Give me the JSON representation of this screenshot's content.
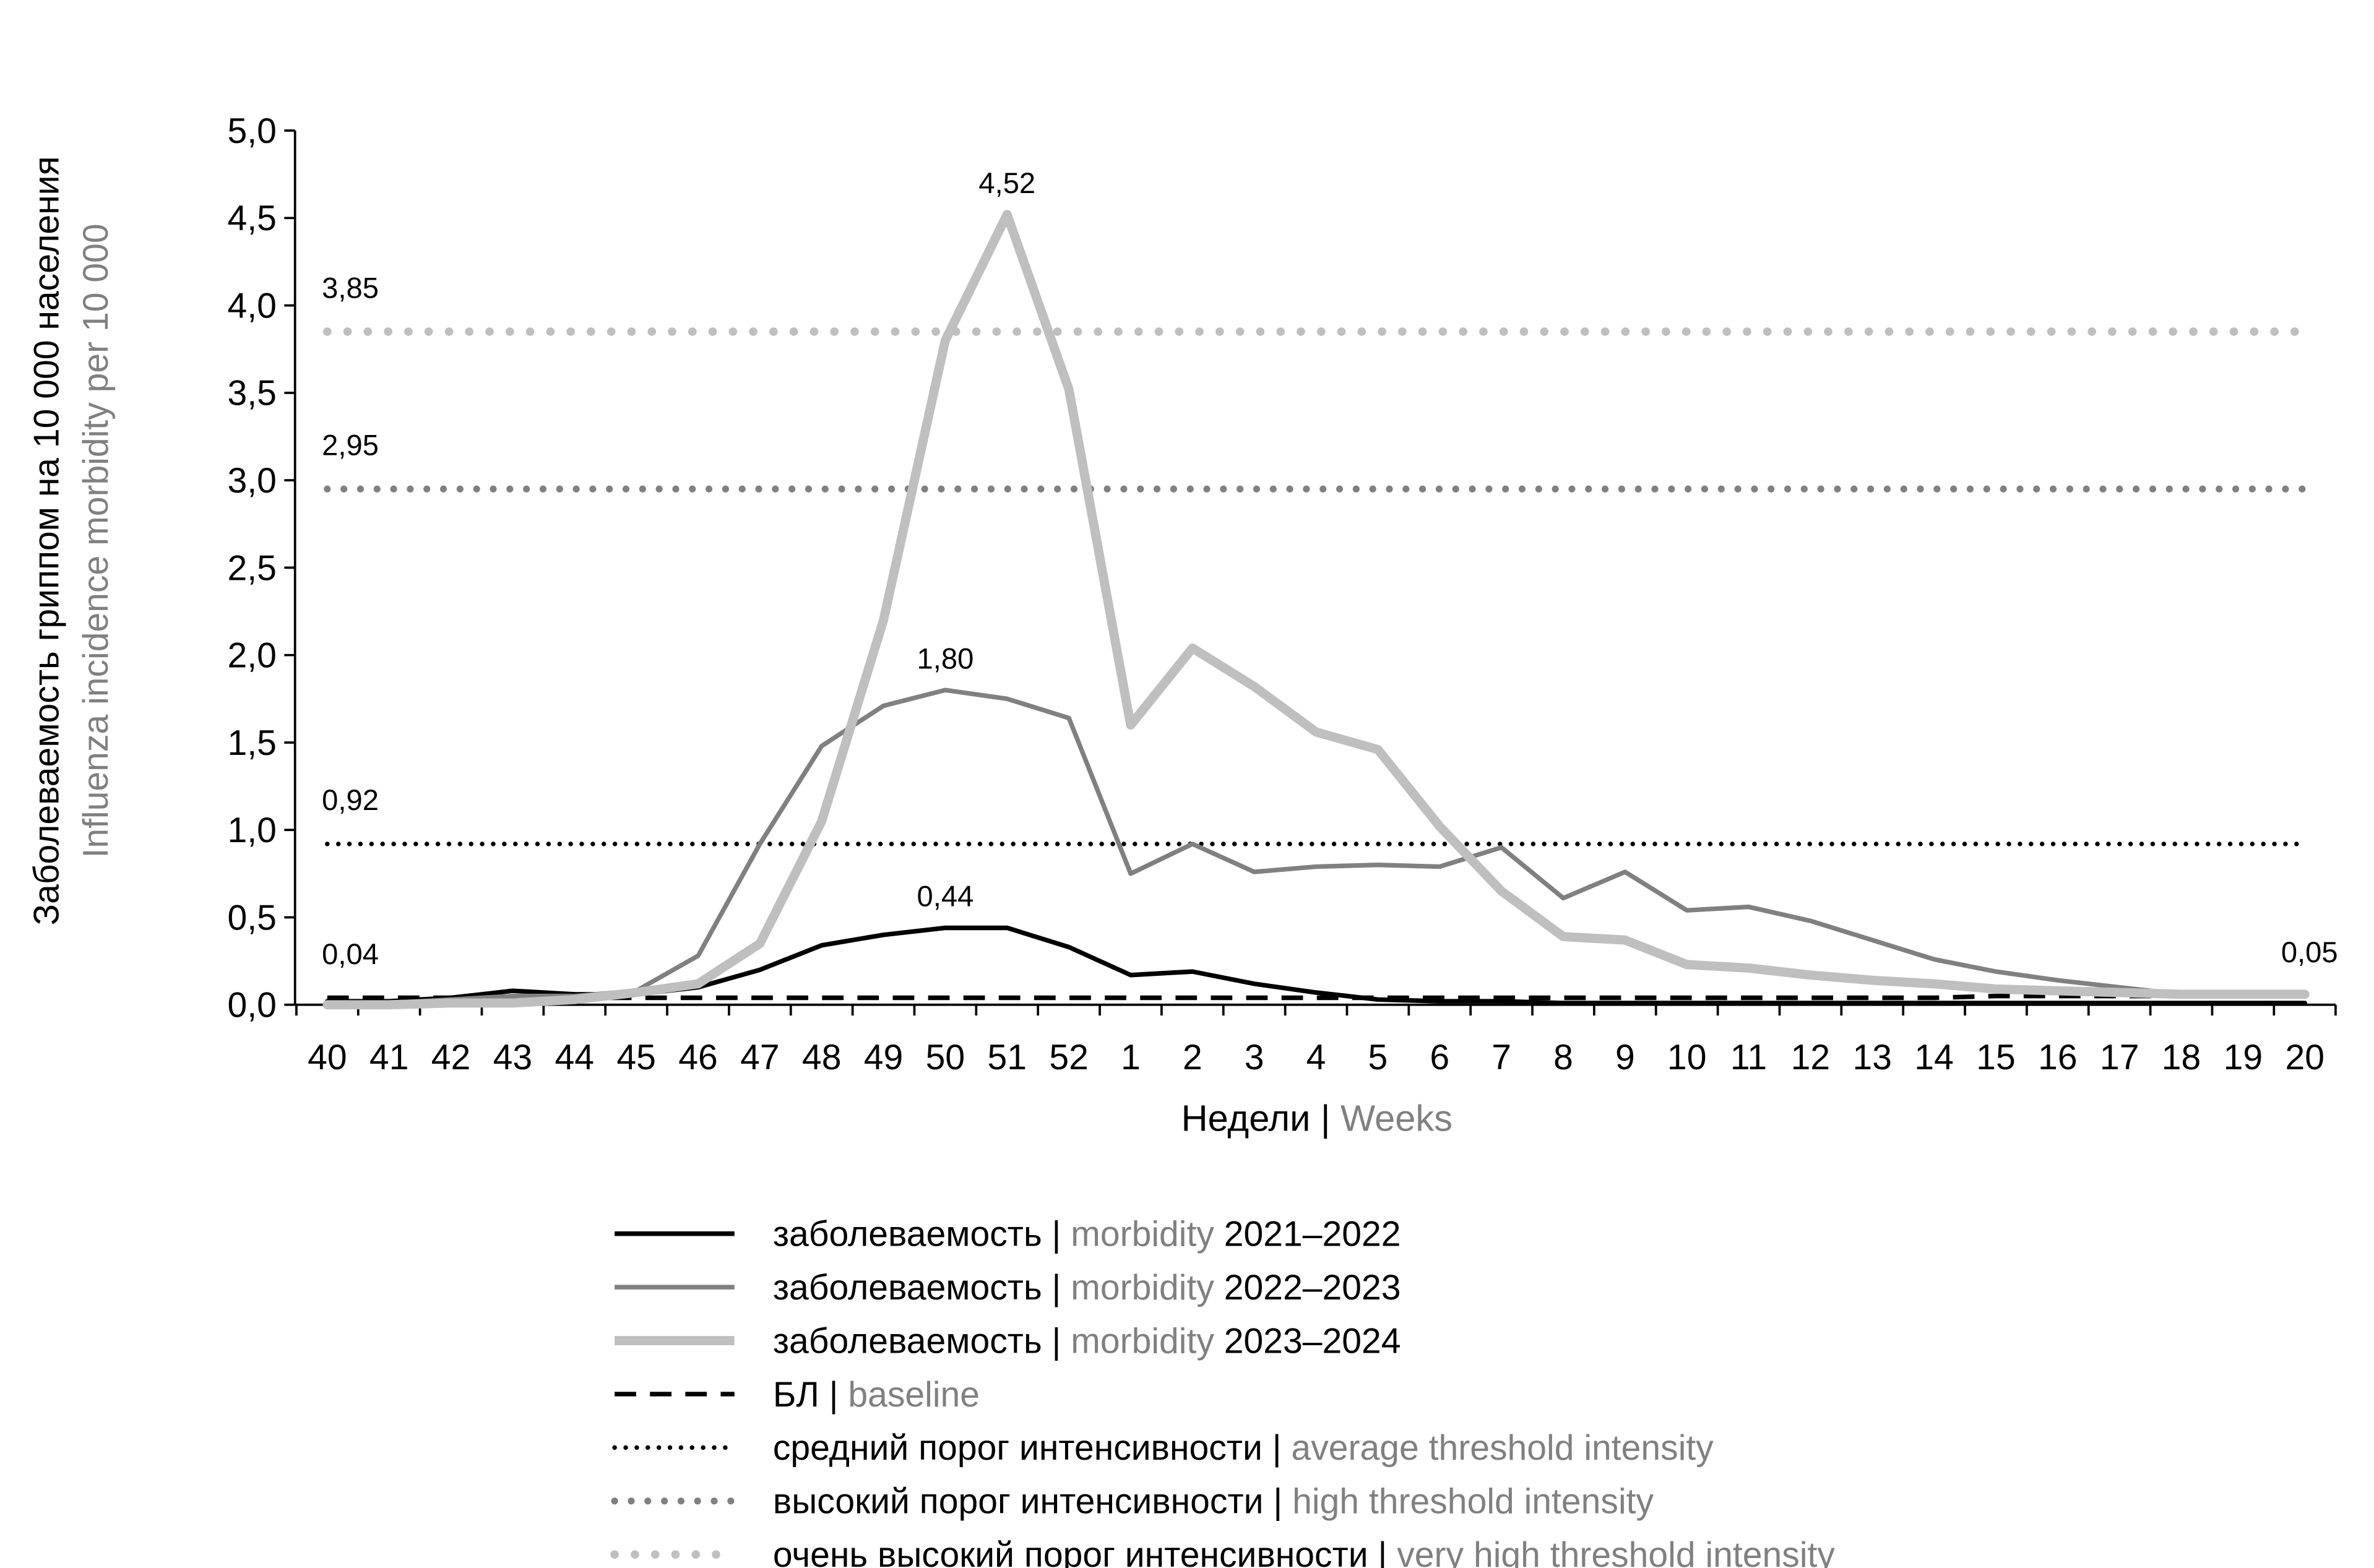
{
  "chart_data": {
    "type": "line",
    "y_title": "Заболеваемость гриппом на 10 000 населения",
    "y_title_en": "Influenza incidence morbidity per 10 000",
    "x_title": "Недели |",
    "x_title_en": "Weeks",
    "categories": [
      "40",
      "41",
      "42",
      "43",
      "44",
      "45",
      "46",
      "47",
      "48",
      "49",
      "50",
      "51",
      "52",
      "1",
      "2",
      "3",
      "4",
      "5",
      "6",
      "7",
      "8",
      "9",
      "10",
      "11",
      "12",
      "13",
      "14",
      "15",
      "16",
      "17",
      "18",
      "19",
      "20"
    ],
    "ylim": [
      0,
      5
    ],
    "yticks": [
      {
        "value": 0,
        "label": "0,0"
      },
      {
        "value": 0.5,
        "label": "0,5"
      },
      {
        "value": 1,
        "label": "1,0"
      },
      {
        "value": 1.5,
        "label": "1,5"
      },
      {
        "value": 2,
        "label": "2,0"
      },
      {
        "value": 2.5,
        "label": "2,5"
      },
      {
        "value": 3,
        "label": "3,0"
      },
      {
        "value": 3.5,
        "label": "3,5"
      },
      {
        "value": 4,
        "label": "4,0"
      },
      {
        "value": 4.5,
        "label": "4,5"
      },
      {
        "value": 5,
        "label": "5,0"
      }
    ],
    "series": [
      {
        "name": "заболеваемость |",
        "name_en": "morbidity",
        "season": "2021–2022",
        "color": "#000000",
        "width": 3,
        "style": "solid",
        "values": [
          0.02,
          0.02,
          0.04,
          0.08,
          0.06,
          0.06,
          0.1,
          0.2,
          0.34,
          0.4,
          0.44,
          0.44,
          0.33,
          0.17,
          0.19,
          0.12,
          0.07,
          0.03,
          0.02,
          0.02,
          0.01,
          0.01,
          0.01,
          0.01,
          0.01,
          0.01,
          0.01,
          0.01,
          0.01,
          0.01,
          0.01,
          0.01,
          0.01
        ],
        "value_labels": [
          null,
          null,
          null,
          null,
          null,
          null,
          null,
          null,
          null,
          null,
          "0,44",
          null,
          null,
          null,
          null,
          null,
          null,
          null,
          null,
          null,
          null,
          null,
          null,
          null,
          null,
          null,
          null,
          null,
          null,
          null,
          null,
          null,
          null
        ]
      },
      {
        "name": "заболеваемость |",
        "name_en": "morbidity",
        "season": "2022–2023",
        "color": "#808080",
        "width": 3,
        "style": "solid",
        "values": [
          0.01,
          0.01,
          0.03,
          0.05,
          0.05,
          0.08,
          0.28,
          0.92,
          1.48,
          1.71,
          1.8,
          1.75,
          1.64,
          0.75,
          0.92,
          0.76,
          0.79,
          0.8,
          0.79,
          0.9,
          0.61,
          0.76,
          0.54,
          0.56,
          0.48,
          0.37,
          0.26,
          0.19,
          0.14,
          0.1,
          0.06,
          0.06,
          0.06
        ],
        "value_labels": [
          null,
          null,
          null,
          null,
          null,
          null,
          null,
          null,
          null,
          null,
          "1,80",
          null,
          null,
          null,
          null,
          null,
          null,
          null,
          null,
          null,
          null,
          null,
          null,
          null,
          null,
          null,
          null,
          null,
          null,
          null,
          null,
          null,
          null
        ]
      },
      {
        "name": "заболеваемость |",
        "name_en": "morbidity",
        "season": "2023–2024",
        "color": "#bfbfbf",
        "width": 6,
        "style": "solid",
        "values": [
          0,
          0,
          0.01,
          0.01,
          0.03,
          0.07,
          0.12,
          0.35,
          1.05,
          2.2,
          3.8,
          4.52,
          3.52,
          1.6,
          2.04,
          1.82,
          1.56,
          1.46,
          1.02,
          0.65,
          0.39,
          0.37,
          0.23,
          0.21,
          0.17,
          0.14,
          0.12,
          0.09,
          0.08,
          0.07,
          0.06,
          0.06,
          0.06
        ],
        "value_labels": [
          null,
          null,
          null,
          null,
          null,
          null,
          null,
          null,
          null,
          null,
          null,
          "4,52",
          null,
          null,
          null,
          null,
          null,
          null,
          null,
          null,
          null,
          null,
          null,
          null,
          null,
          null,
          null,
          null,
          null,
          null,
          null,
          null,
          null
        ]
      },
      {
        "name": "БЛ |",
        "name_en": "baseline",
        "color": "#000000",
        "width": 3,
        "style": "dashed",
        "values": [
          0.04,
          0.04,
          0.04,
          0.04,
          0.04,
          0.04,
          0.04,
          0.04,
          0.04,
          0.04,
          0.04,
          0.04,
          0.04,
          0.04,
          0.04,
          0.04,
          0.04,
          0.04,
          0.04,
          0.04,
          0.04,
          0.04,
          0.04,
          0.04,
          0.04,
          0.04,
          0.04,
          0.05,
          0.05,
          0.05,
          0.05,
          0.05,
          0.05
        ],
        "value_labels": [
          "0,04",
          null,
          null,
          null,
          null,
          null,
          null,
          null,
          null,
          null,
          null,
          null,
          null,
          null,
          null,
          null,
          null,
          null,
          null,
          null,
          null,
          null,
          null,
          null,
          null,
          null,
          null,
          null,
          null,
          null,
          null,
          null,
          "0,05"
        ]
      },
      {
        "name": "средний порог интенсивности |",
        "name_en": "average threshold intensity",
        "color": "#000000",
        "width": 3,
        "style": "dotted",
        "values": [
          0.92,
          0.92,
          0.92,
          0.92,
          0.92,
          0.92,
          0.92,
          0.92,
          0.92,
          0.92,
          0.92,
          0.92,
          0.92,
          0.92,
          0.92,
          0.92,
          0.92,
          0.92,
          0.92,
          0.92,
          0.92,
          0.92,
          0.92,
          0.92,
          0.92,
          0.92,
          0.92,
          0.92,
          0.92,
          0.92,
          0.92,
          0.92,
          0.92
        ],
        "value_labels": [
          "0,92",
          null,
          null,
          null,
          null,
          null,
          null,
          null,
          null,
          null,
          null,
          null,
          null,
          null,
          null,
          null,
          null,
          null,
          null,
          null,
          null,
          null,
          null,
          null,
          null,
          null,
          null,
          null,
          null,
          null,
          null,
          null,
          null
        ]
      },
      {
        "name": "высокий порог интенсивности |",
        "name_en": "high threshold intensity",
        "color": "#808080",
        "width": 4.5,
        "style": "dotted",
        "values": [
          2.95,
          2.95,
          2.95,
          2.95,
          2.95,
          2.95,
          2.95,
          2.95,
          2.95,
          2.95,
          2.95,
          2.95,
          2.95,
          2.95,
          2.95,
          2.95,
          2.95,
          2.95,
          2.95,
          2.95,
          2.95,
          2.95,
          2.95,
          2.95,
          2.95,
          2.95,
          2.95,
          2.95,
          2.95,
          2.95,
          2.95,
          2.95,
          2.95
        ],
        "value_labels": [
          "2,95",
          null,
          null,
          null,
          null,
          null,
          null,
          null,
          null,
          null,
          null,
          null,
          null,
          null,
          null,
          null,
          null,
          null,
          null,
          null,
          null,
          null,
          null,
          null,
          null,
          null,
          null,
          null,
          null,
          null,
          null,
          null,
          null
        ]
      },
      {
        "name": "очень высокий порог интенсивности |",
        "name_en": "very high threshold intensity",
        "color": "#bfbfbf",
        "width": 5.5,
        "style": "dotted",
        "values": [
          3.85,
          3.85,
          3.85,
          3.85,
          3.85,
          3.85,
          3.85,
          3.85,
          3.85,
          3.85,
          3.85,
          3.85,
          3.85,
          3.85,
          3.85,
          3.85,
          3.85,
          3.85,
          3.85,
          3.85,
          3.85,
          3.85,
          3.85,
          3.85,
          3.85,
          3.85,
          3.85,
          3.85,
          3.85,
          3.85,
          3.85,
          3.85,
          3.85
        ],
        "value_labels": [
          "3,85",
          null,
          null,
          null,
          null,
          null,
          null,
          null,
          null,
          null,
          null,
          null,
          null,
          null,
          null,
          null,
          null,
          null,
          null,
          null,
          null,
          null,
          null,
          null,
          null,
          null,
          null,
          null,
          null,
          null,
          null,
          null,
          null
        ]
      }
    ]
  }
}
